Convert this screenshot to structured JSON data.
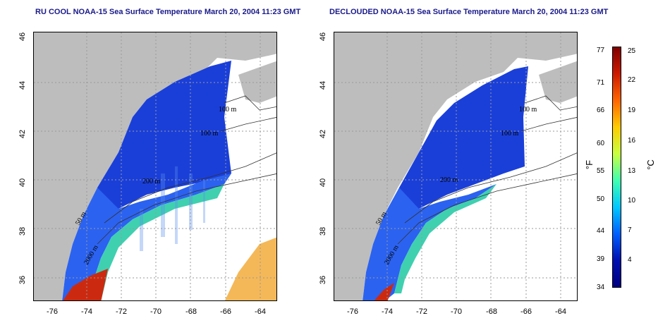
{
  "panels": [
    {
      "title": "RU COOL NOAA-15 Sea Surface Temperature March 20, 2004 11:23 GMT"
    },
    {
      "title": "DECLOUDED NOAA-15 Sea Surface Temperature March 20, 2004 11:23 GMT"
    }
  ],
  "axes": {
    "lat_ticks": [
      "46",
      "44",
      "42",
      "40",
      "38",
      "36"
    ],
    "lon_ticks": [
      "-76",
      "-74",
      "-72",
      "-70",
      "-68",
      "-66",
      "-64"
    ],
    "lon_range": [
      -77,
      -63
    ],
    "lat_range": [
      35,
      46
    ]
  },
  "contours": [
    "100 m",
    "100 m",
    "200 m",
    "50 m",
    "2000 m"
  ],
  "colorbar": {
    "fahrenheit_label": "°F",
    "celsius_label": "°C",
    "fahrenheit_ticks": [
      "77",
      "71",
      "66",
      "60",
      "55",
      "50",
      "44",
      "39",
      "34"
    ],
    "celsius_ticks": [
      "25",
      "22",
      "19",
      "16",
      "13",
      "10",
      "7",
      "4"
    ],
    "colors": [
      "#7f0000",
      "#cc1a00",
      "#ff6600",
      "#ffcc00",
      "#c8ff40",
      "#40ffb0",
      "#00c8ff",
      "#0060ff",
      "#0010b0",
      "#000080"
    ]
  }
}
